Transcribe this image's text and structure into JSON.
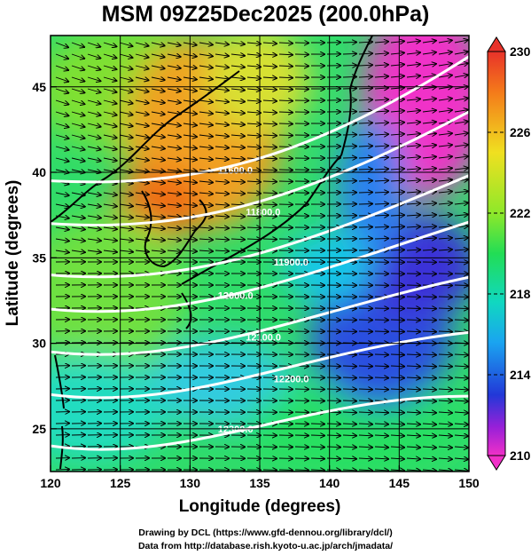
{
  "title": "MSM 09Z25Dec2025 (200.0hPa)",
  "credits": {
    "line1": "Drawing by DCL (https://www.gfd-dennou.org/library/dcl/)",
    "line2": "Data from http://database.rish.kyoto-u.ac.jp/arch/jmadata/"
  },
  "chart_data": {
    "type": "heatmap",
    "xlabel": "Longitude (degrees)",
    "ylabel": "Latitude  (degrees)",
    "xlim": [
      120,
      150
    ],
    "ylim": [
      22.5,
      48
    ],
    "x_ticks": [
      "120",
      "125",
      "130",
      "135",
      "140",
      "145",
      "150"
    ],
    "x_tick_values": [
      120,
      125,
      130,
      135,
      140,
      145,
      150
    ],
    "y_ticks": [
      "25",
      "30",
      "35",
      "40",
      "45"
    ],
    "y_tick_values": [
      25,
      30,
      35,
      40,
      45
    ],
    "grid": true,
    "colorbar": {
      "ticks": [
        "230",
        "226",
        "222",
        "218",
        "214",
        "210"
      ],
      "tick_values": [
        230,
        226,
        222,
        218,
        214,
        210
      ],
      "range": [
        210,
        230
      ]
    },
    "contours": [
      {
        "label": "11600.0",
        "lat": 39.5
      },
      {
        "label": "11800.0",
        "lat": 37.0
      },
      {
        "label": "11900.0",
        "lat": 34.0
      },
      {
        "label": "12000.0",
        "lat": 32.0
      },
      {
        "label": "12100.0",
        "lat": 29.5
      },
      {
        "label": "12200.0",
        "lat": 27.0
      },
      {
        "label": "12300.0",
        "lat": 24.0
      }
    ]
  }
}
